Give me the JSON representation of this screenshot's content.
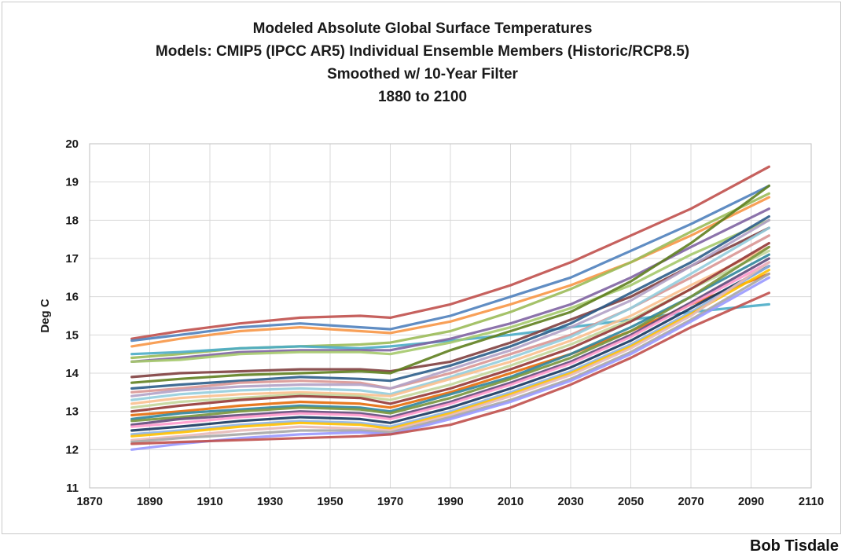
{
  "chart_data": {
    "type": "line",
    "title_lines": [
      "Modeled Absolute Global Surface Temperatures",
      "Models: CMIP5 (IPCC AR5) Individual Ensemble Members (Historic/RCP8.5)",
      "Smoothed w/ 10-Year Filter",
      "1880 to 2100"
    ],
    "xlabel": "",
    "ylabel": "Deg C",
    "xlim": [
      1870,
      2110
    ],
    "ylim": [
      11,
      20
    ],
    "xticks": [
      1870,
      1890,
      1910,
      1930,
      1950,
      1970,
      1990,
      2010,
      2030,
      2050,
      2070,
      2090,
      2110
    ],
    "yticks": [
      11,
      12,
      13,
      14,
      15,
      16,
      17,
      18,
      19,
      20
    ],
    "grid": true,
    "legend": "none",
    "x": [
      1884,
      1900,
      1920,
      1940,
      1960,
      1970,
      1990,
      2010,
      2030,
      2050,
      2070,
      2096
    ],
    "series": [
      {
        "color": "#c0504d",
        "values": [
          14.9,
          15.1,
          15.3,
          15.45,
          15.5,
          15.45,
          15.8,
          16.3,
          16.9,
          17.6,
          18.3,
          19.4
        ]
      },
      {
        "color": "#4f81bd",
        "values": [
          14.85,
          15.0,
          15.2,
          15.3,
          15.2,
          15.15,
          15.5,
          16.0,
          16.5,
          17.2,
          17.9,
          18.9
        ]
      },
      {
        "color": "#f79646",
        "values": [
          14.7,
          14.9,
          15.1,
          15.2,
          15.1,
          15.05,
          15.35,
          15.8,
          16.3,
          16.9,
          17.6,
          18.6
        ]
      },
      {
        "color": "#9bbb59",
        "values": [
          14.4,
          14.5,
          14.65,
          14.7,
          14.75,
          14.8,
          15.1,
          15.6,
          16.2,
          16.9,
          17.7,
          18.7
        ]
      },
      {
        "color": "#4bacc6",
        "values": [
          14.5,
          14.55,
          14.65,
          14.7,
          14.65,
          14.7,
          14.85,
          15.0,
          15.2,
          15.4,
          15.6,
          15.8
        ]
      },
      {
        "color": "#8064a2",
        "values": [
          14.3,
          14.4,
          14.55,
          14.6,
          14.6,
          14.6,
          14.9,
          15.3,
          15.8,
          16.5,
          17.3,
          18.3
        ]
      },
      {
        "color": "#a5c96b",
        "values": [
          14.3,
          14.35,
          14.5,
          14.55,
          14.55,
          14.5,
          14.8,
          15.2,
          15.7,
          16.3,
          17.1,
          18.0
        ]
      },
      {
        "color": "#7f3f3f",
        "values": [
          13.9,
          14.0,
          14.05,
          14.1,
          14.1,
          14.05,
          14.3,
          14.8,
          15.4,
          16.0,
          16.8,
          17.8
        ]
      },
      {
        "color": "#5f7f1f",
        "values": [
          13.75,
          13.85,
          13.95,
          14.0,
          14.05,
          14.0,
          14.6,
          15.1,
          15.6,
          16.4,
          17.4,
          18.9
        ]
      },
      {
        "color": "#2c5d8a",
        "values": [
          13.6,
          13.7,
          13.8,
          13.9,
          13.85,
          13.8,
          14.2,
          14.7,
          15.3,
          16.1,
          16.9,
          18.1
        ]
      },
      {
        "color": "#d99694",
        "values": [
          13.5,
          13.6,
          13.75,
          13.8,
          13.75,
          13.6,
          14.0,
          14.5,
          15.0,
          15.7,
          16.5,
          17.6
        ]
      },
      {
        "color": "#b3a2c7",
        "values": [
          13.4,
          13.55,
          13.65,
          13.7,
          13.7,
          13.6,
          14.1,
          14.6,
          15.2,
          15.9,
          16.8,
          18.0
        ]
      },
      {
        "color": "#93cddd",
        "values": [
          13.3,
          13.45,
          13.55,
          13.6,
          13.55,
          13.45,
          13.9,
          14.4,
          14.95,
          15.7,
          16.6,
          17.8
        ]
      },
      {
        "color": "#fac08f",
        "values": [
          13.2,
          13.35,
          13.45,
          13.5,
          13.45,
          13.4,
          13.85,
          14.3,
          14.85,
          15.5,
          16.3,
          17.3
        ]
      },
      {
        "color": "#c3d69b",
        "values": [
          13.1,
          13.25,
          13.35,
          13.45,
          13.4,
          13.3,
          13.7,
          14.2,
          14.75,
          15.4,
          16.2,
          17.2
        ]
      },
      {
        "color": "#953735",
        "values": [
          13.0,
          13.15,
          13.3,
          13.4,
          13.35,
          13.2,
          13.6,
          14.1,
          14.65,
          15.35,
          16.2,
          17.4
        ]
      },
      {
        "color": "#e46c0a",
        "values": [
          12.9,
          13.0,
          13.15,
          13.25,
          13.2,
          13.1,
          13.5,
          14.0,
          14.5,
          15.1,
          15.8,
          16.6
        ]
      },
      {
        "color": "#31859c",
        "values": [
          12.8,
          12.95,
          13.05,
          13.15,
          13.1,
          13.0,
          13.45,
          13.9,
          14.5,
          15.2,
          16.0,
          17.1
        ]
      },
      {
        "color": "#77933c",
        "values": [
          12.75,
          12.85,
          13.0,
          13.1,
          13.05,
          12.95,
          13.35,
          13.85,
          14.4,
          15.1,
          16.0,
          17.3
        ]
      },
      {
        "color": "#60497a",
        "values": [
          12.65,
          12.8,
          12.9,
          13.0,
          12.95,
          12.85,
          13.25,
          13.75,
          14.3,
          15.0,
          15.85,
          17.0
        ]
      },
      {
        "color": "#ff99cc",
        "values": [
          12.6,
          12.7,
          12.85,
          12.95,
          12.9,
          12.8,
          13.2,
          13.7,
          14.25,
          14.95,
          15.8,
          16.9
        ]
      },
      {
        "color": "#17375e",
        "values": [
          12.5,
          12.6,
          12.75,
          12.85,
          12.8,
          12.7,
          13.1,
          13.6,
          14.15,
          14.85,
          15.7,
          16.8
        ]
      },
      {
        "color": "#8eb4e3",
        "values": [
          12.4,
          12.5,
          12.65,
          12.75,
          12.7,
          12.6,
          13.0,
          13.5,
          14.05,
          14.75,
          15.6,
          16.8
        ]
      },
      {
        "color": "#ffc000",
        "values": [
          12.35,
          12.45,
          12.6,
          12.7,
          12.65,
          12.55,
          12.95,
          13.45,
          14.0,
          14.7,
          15.55,
          16.7
        ]
      },
      {
        "color": "#e6b9b8",
        "values": [
          12.25,
          12.35,
          12.5,
          12.6,
          12.55,
          12.5,
          12.9,
          13.4,
          13.95,
          14.65,
          15.5,
          16.9
        ]
      },
      {
        "color": "#a6a6a6",
        "values": [
          12.2,
          12.3,
          12.4,
          12.5,
          12.5,
          12.45,
          12.85,
          13.3,
          13.85,
          14.55,
          15.4,
          16.6
        ]
      },
      {
        "color": "#9999ff",
        "values": [
          12.0,
          12.15,
          12.3,
          12.4,
          12.45,
          12.4,
          12.8,
          13.25,
          13.8,
          14.5,
          15.35,
          16.5
        ]
      },
      {
        "color": "#c0504d",
        "values": [
          12.15,
          12.2,
          12.25,
          12.3,
          12.35,
          12.4,
          12.65,
          13.1,
          13.7,
          14.4,
          15.2,
          16.1
        ]
      }
    ]
  },
  "credit": "Bob Tisdale"
}
